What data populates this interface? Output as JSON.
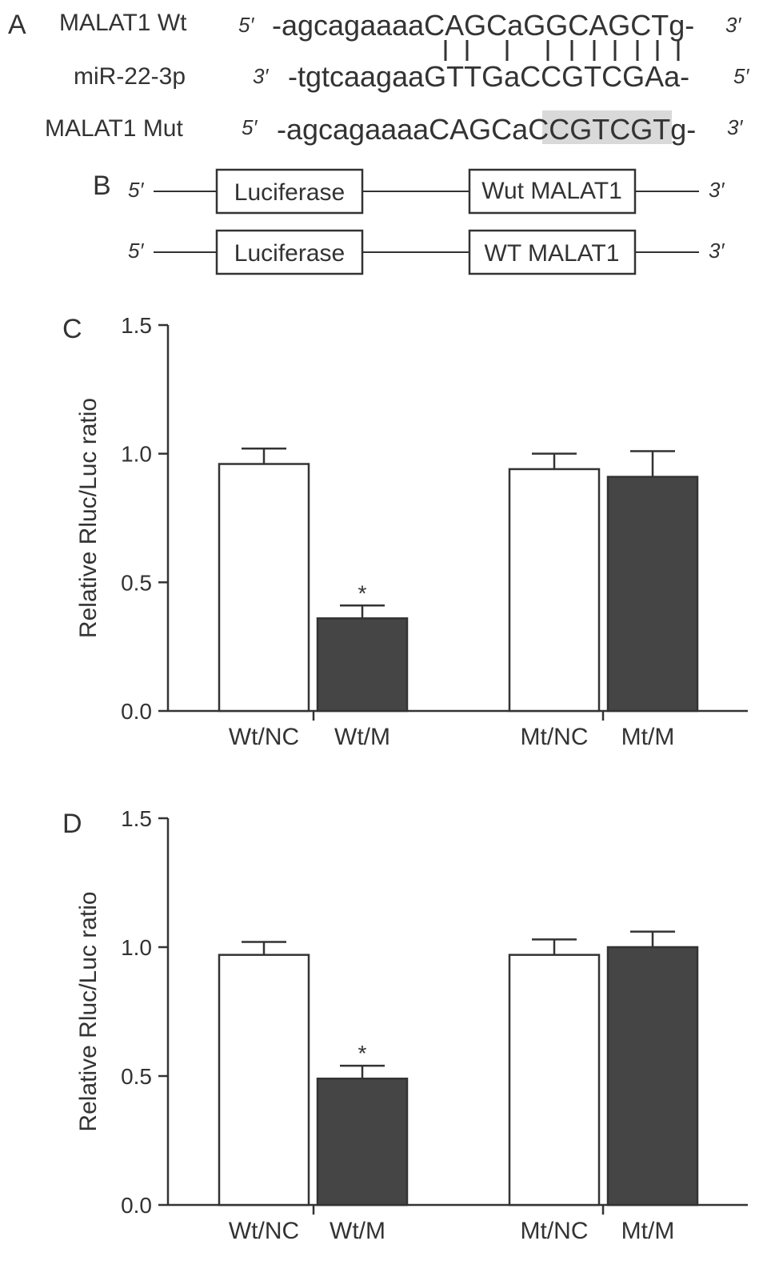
{
  "panel_a": {
    "label": "A",
    "rows": [
      {
        "name": "MALAT1 Wt",
        "left_end": "5′",
        "sequence": "-agcagaaaaCAGCaGGCAGCTg-",
        "right_end": "3′"
      },
      {
        "name": "miR-22-3p",
        "left_end": "3′",
        "sequence": "-tgtcaagaaGTTGaCCGTCGAa-",
        "right_end": "5′"
      },
      {
        "name": "MALAT1 Mut",
        "left_end": "5′",
        "sequence_prefix": "-agcagaaaaCAGCa",
        "sequence_highlight": "CCGTCG",
        "sequence_suffix": "Tg-",
        "right_end": "3′",
        "highlight_color": "#d9d9d9"
      }
    ]
  },
  "panel_b": {
    "label": "B",
    "constructs": [
      {
        "left_end": "5′",
        "box1": "Luciferase",
        "box2": "Wut MALAT1",
        "right_end": "3′"
      },
      {
        "left_end": "5′",
        "box1": "Luciferase",
        "box2": "WT MALAT1",
        "right_end": "3′"
      }
    ]
  },
  "chart_data": [
    {
      "panel": "C",
      "type": "bar",
      "ylabel": "Relative Rluc/Luc ratio",
      "ylim": [
        0,
        1.5
      ],
      "yticks": [
        "0.0",
        "0.5",
        "1.0",
        "1.5"
      ],
      "categories": [
        "Wt/NC",
        "Wt/M",
        "Mt/NC",
        "Mt/M"
      ],
      "values": [
        0.96,
        0.36,
        0.94,
        0.91
      ],
      "errors": [
        0.06,
        0.05,
        0.06,
        0.1
      ],
      "significance": [
        "",
        "*",
        "",
        ""
      ],
      "bar_colors": [
        "#ffffff",
        "#454545",
        "#ffffff",
        "#454545"
      ]
    },
    {
      "panel": "D",
      "type": "bar",
      "ylabel": "Relative Rluc/Luc ratio",
      "ylim": [
        0,
        1.5
      ],
      "yticks": [
        "0.0",
        "0.5",
        "1.0",
        "1.5"
      ],
      "categories": [
        "Wt/NC",
        "Wt/M",
        "Mt/NC",
        "Mt/M"
      ],
      "values": [
        0.97,
        0.49,
        0.97,
        1.0
      ],
      "errors": [
        0.05,
        0.05,
        0.06,
        0.06
      ],
      "significance": [
        "",
        "*",
        "",
        ""
      ],
      "bar_colors": [
        "#ffffff",
        "#454545",
        "#ffffff",
        "#454545"
      ]
    }
  ]
}
